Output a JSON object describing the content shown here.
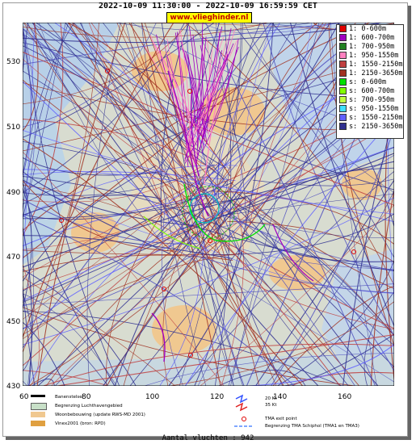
{
  "header": {
    "title": "2022-10-09 11:30:00 - 2022-10-09 16:59:59 CET",
    "site": "www.vlieghinder.nl"
  },
  "axes": {
    "y_ticks": [
      "530",
      "510",
      "490",
      "470",
      "450",
      "430"
    ],
    "x_ticks": [
      "60",
      "80",
      "100",
      "120",
      "140",
      "160"
    ]
  },
  "legend": [
    {
      "label": "1: 0-600m",
      "color": "#e00000"
    },
    {
      "label": "1: 600-700m",
      "color": "#a000c0"
    },
    {
      "label": "1: 700-950m",
      "color": "#208020"
    },
    {
      "label": "1: 950-1550m",
      "color": "#ff80c0"
    },
    {
      "label": "1: 1550-2150m",
      "color": "#c04040"
    },
    {
      "label": "1: 2150-3650m",
      "color": "#a03020"
    },
    {
      "label": "s: 0-600m",
      "color": "#00e000"
    },
    {
      "label": "s: 600-700m",
      "color": "#80ff00"
    },
    {
      "label": "s: 700-950m",
      "color": "#c0ff40"
    },
    {
      "label": "s: 950-1550m",
      "color": "#40e0ff"
    },
    {
      "label": "s: 1550-2150m",
      "color": "#6060ff"
    },
    {
      "label": "s: 2150-3650m",
      "color": "#303090"
    }
  ],
  "bottom_legend": {
    "runway": "Banenstelsel",
    "airport_boundary": "Begrenzing Luchthavengebied",
    "housing": "Woonbebouwing (update RWS-MD 2001)",
    "vinex": "Vinex2001 (bron: RPD)",
    "wind_20": "20 Kt",
    "wind_35": "35 Kt",
    "tma_exit": "TMA exit point",
    "tma_boundary": "Begrenzing TMA Schiphol  (TMA1 en TMA3)"
  },
  "footer": {
    "flights": "Aantal vluchten : 942"
  }
}
